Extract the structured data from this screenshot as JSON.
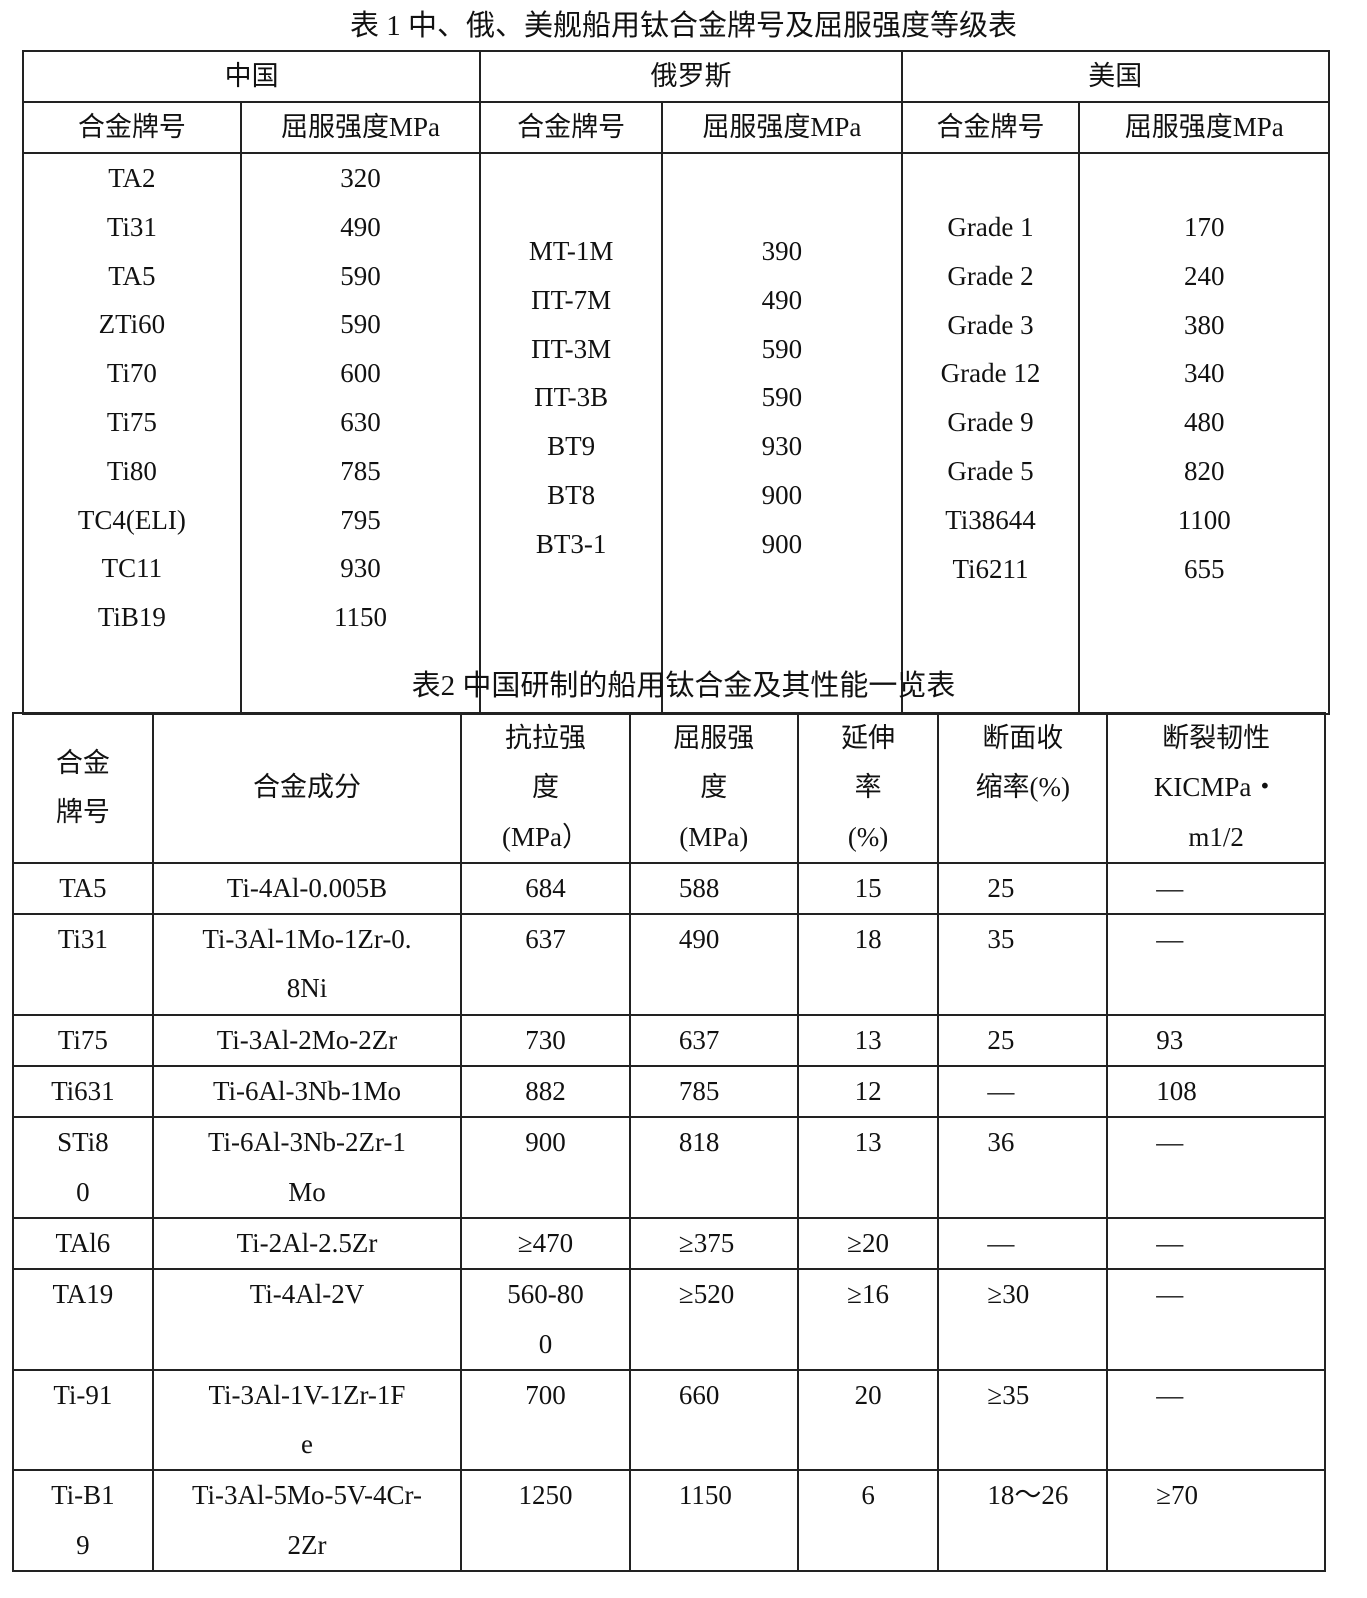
{
  "table1": {
    "title": "表 1  中、俄、美舰船用钛合金牌号及屈服强度等级表",
    "countries": [
      "中国",
      "俄罗斯",
      "美国"
    ],
    "subheaders": [
      "合金牌号",
      "屈服强度MPa",
      "合金牌号",
      "屈服强度MPa",
      "合金牌号",
      "屈服强度MPa"
    ],
    "china": {
      "grades": [
        "TA2",
        "Ti31",
        "TA5",
        "ZTi60",
        "Ti70",
        "Ti75",
        "Ti80",
        "TC4(ELI)",
        "TC11",
        "TiB19"
      ],
      "yield": [
        "320",
        "490",
        "590",
        "590",
        "600",
        "630",
        "785",
        "795",
        "930",
        "1150"
      ]
    },
    "russia": {
      "grades": [
        "MT-1M",
        "ΠT-7M",
        "ΠT-3M",
        "ΠT-3B",
        "BT9",
        "BT8",
        "BT3-1"
      ],
      "yield": [
        "390",
        "490",
        "590",
        "590",
        "930",
        "900",
        "900"
      ]
    },
    "usa": {
      "grades": [
        "Grade 1",
        "Grade 2",
        "Grade 3",
        "Grade 12",
        "Grade 9",
        "Grade 5",
        "Ti38644",
        "Ti6211"
      ],
      "yield": [
        "170",
        "240",
        "380",
        "340",
        "480",
        "820",
        "1100",
        "655"
      ]
    }
  },
  "table2": {
    "title": "表2  中国研制的船用钛合金及其性能一览表",
    "headers": [
      "合金\n牌号",
      "合金成分",
      "抗拉强\n度\n(MPa）",
      "屈服强\n度\n(MPa)",
      "延伸\n率\n(%)",
      "断面收\n缩率(%)",
      "断裂韧性\nKICMPa・\nm1/2"
    ],
    "rows": [
      [
        "TA5",
        "Ti-4Al-0.005B",
        "684",
        "588",
        "15",
        "25",
        "—"
      ],
      [
        "Ti31",
        "Ti-3Al-1Mo-1Zr-0.\n8Ni",
        "637",
        "490",
        "18",
        "35",
        "—"
      ],
      [
        "Ti75",
        "Ti-3Al-2Mo-2Zr",
        "730",
        "637",
        "13",
        "25",
        "93"
      ],
      [
        "Ti631",
        "Ti-6Al-3Nb-1Mo",
        "882",
        "785",
        "12",
        "—",
        "108"
      ],
      [
        "STi8\n0",
        "Ti-6Al-3Nb-2Zr-1\nMo",
        "900",
        "818",
        "13",
        "36",
        "—"
      ],
      [
        "TAl6",
        "Ti-2Al-2.5Zr",
        "≥470",
        "≥375",
        "≥20",
        "—",
        "—"
      ],
      [
        "TA19",
        "Ti-4Al-2V",
        "560-80\n0",
        "≥520",
        "≥16",
        "≥30",
        "—"
      ],
      [
        "Ti-91",
        "Ti-3Al-1V-1Zr-1F\ne",
        "700",
        "660",
        "20",
        "≥35",
        "—"
      ],
      [
        "Ti-B1\n9",
        "Ti-3Al-5Mo-5V-4Cr-\n2Zr",
        "1250",
        "1150",
        "6",
        "18～26",
        "≥70"
      ]
    ]
  }
}
